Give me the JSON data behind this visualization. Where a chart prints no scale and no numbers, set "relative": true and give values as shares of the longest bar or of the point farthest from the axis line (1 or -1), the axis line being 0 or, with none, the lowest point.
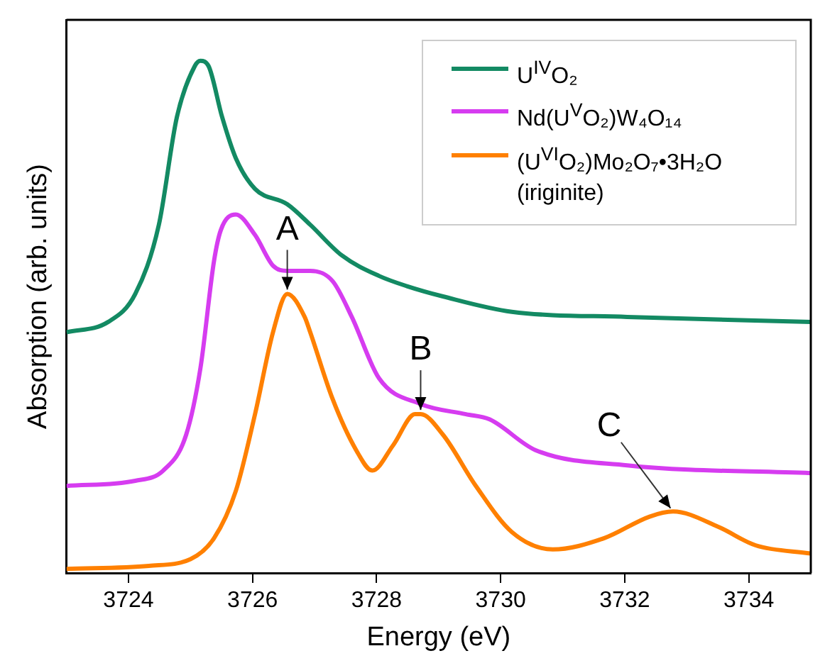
{
  "chart_data": {
    "type": "line",
    "xlabel": "Energy (eV)",
    "ylabel": "Absorption (arb. units)",
    "relative": true,
    "xlim": [
      3723,
      3735
    ],
    "xticks": [
      3724,
      3726,
      3728,
      3730,
      3732,
      3734
    ],
    "grid": false,
    "legend": "top right",
    "marker": "none",
    "line_style": "solid",
    "series": [
      {
        "name": "U$^{IV}$O₂",
        "color": "#138a63",
        "x": [
          3723,
          3723.67,
          3724.11,
          3724.49,
          3724.78,
          3725.07,
          3725.16,
          3725.29,
          3725.51,
          3725.73,
          3726.04,
          3726.56,
          3726.93,
          3727.44,
          3728.04,
          3728.49,
          3729.07,
          3730.18,
          3732.04,
          3735
        ],
        "values": [
          0.47,
          0.49,
          0.545,
          0.68,
          0.89,
          0.99,
          1.0,
          0.99,
          0.89,
          0.81,
          0.75,
          0.72,
          0.68,
          0.62,
          0.58,
          0.56,
          0.54,
          0.51,
          0.5,
          0.49
        ]
      },
      {
        "name": "Nd(U$^{V}$O₂)W₄O₁₄",
        "color": "#d63cf0",
        "x": [
          3723,
          3724.11,
          3724.56,
          3724.93,
          3725.16,
          3725.38,
          3725.49,
          3725.73,
          3726.04,
          3726.33,
          3726.56,
          3726.93,
          3727.29,
          3727.6,
          3728.04,
          3728.71,
          3729.44,
          3729.82,
          3730.56,
          3732.04,
          3735
        ],
        "values": [
          0.17,
          0.18,
          0.2,
          0.27,
          0.4,
          0.61,
          0.67,
          0.7,
          0.66,
          0.6,
          0.59,
          0.59,
          0.57,
          0.5,
          0.38,
          0.33,
          0.31,
          0.3,
          0.24,
          0.21,
          0.195
        ]
      },
      {
        "name": "(U$^{VI}$O₂)Mo₂O₇•3H₂O (iriginite)",
        "color": "#ff8000",
        "x": [
          3723,
          3724.33,
          3725,
          3725.38,
          3725.73,
          3726.04,
          3726.33,
          3726.56,
          3726.84,
          3726.93,
          3727.29,
          3727.67,
          3727.93,
          3728.27,
          3728.62,
          3728.71,
          3729.07,
          3729.6,
          3730.18,
          3730.84,
          3731.67,
          3732.4,
          3732.78,
          3733.51,
          3734.11,
          3735
        ],
        "values": [
          0.008,
          0.014,
          0.027,
          0.068,
          0.16,
          0.31,
          0.47,
          0.545,
          0.5,
          0.47,
          0.34,
          0.24,
          0.2,
          0.25,
          0.31,
          0.31,
          0.27,
          0.17,
          0.08,
          0.046,
          0.068,
          0.11,
          0.12,
          0.09,
          0.054,
          0.038
        ]
      }
    ],
    "annotations": [
      {
        "text": "A",
        "x": 3726.56,
        "y": 0.545
      },
      {
        "text": "B",
        "x": 3728.71,
        "y": 0.31
      },
      {
        "text": "C",
        "x": 3732.78,
        "y": 0.12
      }
    ]
  }
}
